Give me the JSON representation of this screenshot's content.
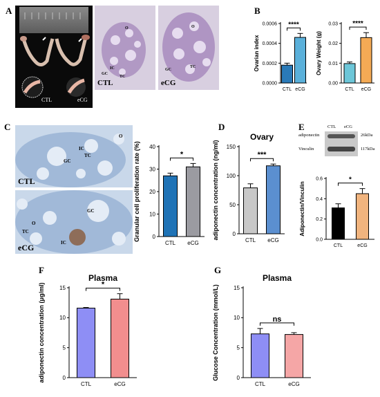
{
  "panels": {
    "A": "A",
    "B": "B",
    "C": "C",
    "D": "D",
    "E": "E",
    "F": "F",
    "G": "G"
  },
  "panel_a": {
    "group_left": "CTL",
    "group_right": "eCG",
    "hist_left": "CTL",
    "hist_right": "eCG",
    "labels": {
      "o": "O",
      "ic": "IC",
      "gc": "GC",
      "tc": "TC"
    }
  },
  "panel_c": {
    "top_label": "CTL",
    "bottom_label": "eCG",
    "labels": {
      "o": "O",
      "ic": "IC",
      "tc": "TC",
      "gc": "GC"
    }
  },
  "panel_e_blot": {
    "header_left": "CTL",
    "header_right": "eCG",
    "row1": "adiponectin",
    "row2": "Vinculin",
    "kda1": "26kDa",
    "kda2": "117kDa"
  },
  "colors": {
    "ctl_b": "#2a7ab8",
    "ecg_b_left": "#5ab0da",
    "ecg_b_right": "#f4aa55",
    "ctl_b_right": "#6cc6d8",
    "ctl_c": "#1f73b6",
    "ecg_c": "#9b9ba1",
    "ctl_d": "#c8c8c8",
    "ecg_d": "#5b8fd0",
    "ctl_e": "#000000",
    "ecg_e": "#f1b47e",
    "ctl_f": "#8e8ef5",
    "ecg_f": "#f28e8e",
    "ctl_g": "#8e8ef5",
    "ecg_g": "#f5a6a6"
  },
  "chart_data": [
    {
      "id": "b1",
      "type": "bar",
      "categories": [
        "CTL",
        "eCG"
      ],
      "values": [
        0.00018,
        0.00046
      ],
      "errors": [
        2e-05,
        4e-05
      ],
      "ylabel": "Ovarian index",
      "ylim": [
        0,
        0.0006
      ],
      "yticks": [
        "0.0000",
        "0.0002",
        "0.0004",
        "0.0006"
      ],
      "sig": "****"
    },
    {
      "id": "b2",
      "type": "bar",
      "categories": [
        "CTL",
        "eCG"
      ],
      "values": [
        0.0098,
        0.0229
      ],
      "errors": [
        0.0008,
        0.0025
      ],
      "ylabel": "Ovary Weight (g)",
      "ylim": [
        0,
        0.03
      ],
      "yticks": [
        "0.00",
        "0.01",
        "0.02",
        "0.03"
      ],
      "sig": "****"
    },
    {
      "id": "c",
      "type": "bar",
      "categories": [
        "CTL",
        "eCG"
      ],
      "values": [
        27,
        31
      ],
      "errors": [
        1.2,
        1.5
      ],
      "ylabel": "Granular cell proliferation rate (%)",
      "ylim": [
        0,
        40
      ],
      "yticks": [
        "0",
        "10",
        "20",
        "30",
        "40"
      ],
      "sig": "*"
    },
    {
      "id": "d",
      "type": "bar",
      "title": "Ovary",
      "categories": [
        "CTL",
        "eCG"
      ],
      "values": [
        79,
        117
      ],
      "errors": [
        7,
        3
      ],
      "ylabel": "adiponectin concentration (ng/ml)",
      "ylim": [
        0,
        150
      ],
      "yticks": [
        "0",
        "50",
        "100",
        "150"
      ],
      "sig": "***"
    },
    {
      "id": "e",
      "type": "bar",
      "categories": [
        "CTL",
        "eCG"
      ],
      "values": [
        0.31,
        0.45
      ],
      "errors": [
        0.04,
        0.05
      ],
      "ylabel": "Adiponectin/Vinculin",
      "ylim": [
        0,
        0.6
      ],
      "yticks": [
        "0.0",
        "0.2",
        "0.4",
        "0.6"
      ],
      "sig": "*"
    },
    {
      "id": "f",
      "type": "bar",
      "title": "Plasma",
      "categories": [
        "CTL",
        "eCG"
      ],
      "values": [
        11.6,
        13.1
      ],
      "errors": [
        0.1,
        0.9
      ],
      "ylabel": "adiponectin concentration (μg/ml)",
      "ylim": [
        0,
        15
      ],
      "yticks": [
        "0",
        "5",
        "10",
        "15"
      ],
      "sig": "*"
    },
    {
      "id": "g",
      "type": "bar",
      "title": "Plasma",
      "categories": [
        "CTL",
        "eCG"
      ],
      "values": [
        7.3,
        7.2
      ],
      "errors": [
        0.9,
        0.3
      ],
      "ylabel": "Glucose Concentration (mmol/L)",
      "ylim": [
        0,
        15
      ],
      "yticks": [
        "0",
        "5",
        "10",
        "15"
      ],
      "sig": "ns"
    }
  ]
}
